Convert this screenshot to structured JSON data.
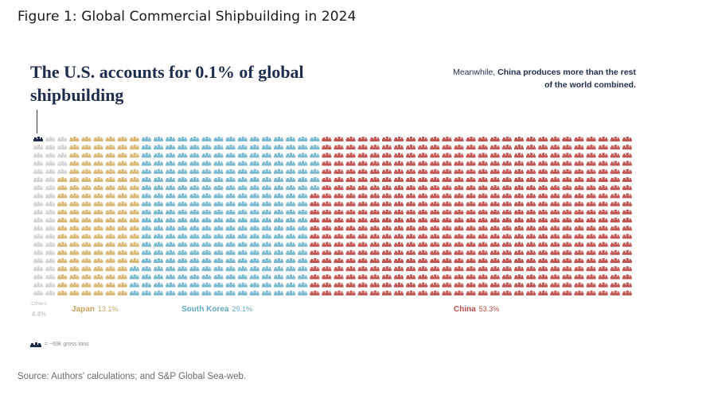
{
  "figure_title": "Figure 1: Global Commercial Shipbuilding in 2024",
  "headline": "The U.S. accounts for 0.1% of global shipbuilding",
  "annotation": {
    "prefix": "Meanwhile, ",
    "bold": "China produces more than the rest of the world combined."
  },
  "legend_key": "= ~69k gross tons",
  "source": "Source: Authors' calculations; and S&P Global Sea-web.",
  "colors": {
    "us": "#1f2d4d",
    "others": "#d5d5d5",
    "japan": "#d9b775",
    "south_korea": "#7ab9cf",
    "china": "#c05552"
  },
  "chart_data": {
    "type": "waffle",
    "title": "The U.S. accounts for 0.1% of global shipbuilding",
    "unit": "~69k gross tons per ship icon",
    "rows": 20,
    "columns": 50,
    "categories": [
      {
        "name": "U.S.",
        "percent": 0.1,
        "label": "",
        "pct_label": "",
        "color_key": "us"
      },
      {
        "name": "Others",
        "percent": 4.4,
        "label": "Others",
        "pct_label": "4.4%",
        "color_key": "others"
      },
      {
        "name": "Japan",
        "percent": 13.1,
        "label": "Japan",
        "pct_label": "13.1%",
        "color_key": "japan"
      },
      {
        "name": "South Korea",
        "percent": 29.1,
        "label": "South Korea",
        "pct_label": "29.1%",
        "color_key": "south_korea"
      },
      {
        "name": "China",
        "percent": 53.3,
        "label": "China",
        "pct_label": "53.3%",
        "color_key": "china"
      }
    ]
  }
}
